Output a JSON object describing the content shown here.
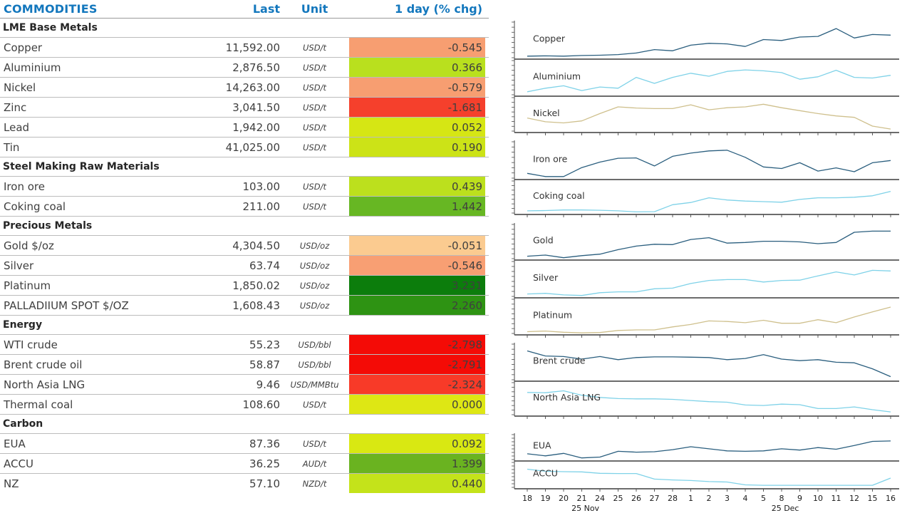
{
  "title": "COMMODITIES",
  "columns": {
    "last": "Last",
    "unit": "Unit",
    "chg": "1 day (% chg)"
  },
  "colors": {
    "header_blue": "#1377bd",
    "table_text": "#3f3f3f",
    "axis": "#4a4a4a",
    "dark_line": "#2a5e7e",
    "light_line": "#7fd2e8",
    "tan_line": "#cfc08d"
  },
  "sections": [
    {
      "name": "LME Base Metals",
      "rows": [
        {
          "label": "Copper",
          "last": "11,592.00",
          "unit": "USD/t",
          "chg": "-0.545",
          "bg": "#f79e71"
        },
        {
          "label": "Aluminium",
          "last": "2,876.50",
          "unit": "USD/t",
          "chg": "0.366",
          "bg": "#b9e01e"
        },
        {
          "label": "Nickel",
          "last": "14,263.00",
          "unit": "USD/t",
          "chg": "-0.579",
          "bg": "#f79e71"
        },
        {
          "label": "Zinc",
          "last": "3,041.50",
          "unit": "USD/t",
          "chg": "-1.681",
          "bg": "#f5402c"
        },
        {
          "label": "Lead",
          "last": "1,942.00",
          "unit": "USD/t",
          "chg": "0.052",
          "bg": "#d6e614"
        },
        {
          "label": "Tin",
          "last": "41,025.00",
          "unit": "USD/t",
          "chg": "0.190",
          "bg": "#cce317"
        }
      ]
    },
    {
      "name": "Steel Making Raw Materials",
      "rows": [
        {
          "label": "Iron ore",
          "last": "103.00",
          "unit": "USD/t",
          "chg": "0.439",
          "bg": "#bce01d"
        },
        {
          "label": "Coking coal",
          "last": "211.00",
          "unit": "USD/t",
          "chg": "1.442",
          "bg": "#67b723"
        }
      ]
    },
    {
      "name": "Precious Metals",
      "rows": [
        {
          "label": "Gold $/oz",
          "last": "4,304.50",
          "unit": "USD/oz",
          "chg": "-0.051",
          "bg": "#fbcb90"
        },
        {
          "label": "Silver",
          "last": "63.74",
          "unit": "USD/oz",
          "chg": "-0.546",
          "bg": "#f89f73"
        },
        {
          "label": "Platinum",
          "last": "1,850.02",
          "unit": "USD/oz",
          "chg": "3.231",
          "bg": "#0c7d0c"
        },
        {
          "label": "PALLADIIUM SPOT $/OZ",
          "last": "1,608.43",
          "unit": "USD/oz",
          "chg": "2.260",
          "bg": "#2e9313"
        }
      ]
    },
    {
      "name": "Energy",
      "rows": [
        {
          "label": "WTI crude",
          "last": "55.23",
          "unit": "USD/bbl",
          "chg": "-2.798",
          "bg": "#f40b06"
        },
        {
          "label": "Brent crude oil",
          "last": "58.87",
          "unit": "USD/bbl",
          "chg": "-2.791",
          "bg": "#f40b06"
        },
        {
          "label": "North Asia LNG",
          "last": "9.46",
          "unit": "USD/MMBtu",
          "chg": "-2.324",
          "bg": "#f83a28"
        },
        {
          "label": "Thermal coal",
          "last": "108.60",
          "unit": "USD/t",
          "chg": "0.000",
          "bg": "#dee714"
        }
      ]
    },
    {
      "name": "Carbon",
      "rows": [
        {
          "label": "EUA",
          "last": "87.36",
          "unit": "USD/t",
          "chg": "0.092",
          "bg": "#d9e812"
        },
        {
          "label": "ACCU",
          "last": "36.25",
          "unit": "AUD/t",
          "chg": "1.399",
          "bg": "#6ab320"
        },
        {
          "label": "NZ",
          "last": "57.10",
          "unit": "NZD/t",
          "chg": "0.440",
          "bg": "#c4e31a"
        }
      ]
    }
  ],
  "chart_data": {
    "type": "line",
    "note": "sparklines, y normalized 0-100 per band (no y tick labels shown)",
    "x_labels": [
      "18",
      "19",
      "20",
      "21",
      "24",
      "25",
      "26",
      "27",
      "28",
      "1",
      "2",
      "3",
      "4",
      "5",
      "8",
      "9",
      "10",
      "11",
      "12",
      "15",
      "16"
    ],
    "month_labels": [
      {
        "text": "25 Nov",
        "index": 3.2
      },
      {
        "text": "25 Dec",
        "index": 14.2
      }
    ],
    "groups": [
      {
        "series": [
          {
            "label": "Copper",
            "palette": "dark_line",
            "values_norm": [
              5,
              6,
              5,
              7,
              8,
              10,
              15,
              26,
              22,
              40,
              46,
              44,
              36,
              58,
              55,
              66,
              68,
              93,
              63,
              74,
              72
            ]
          },
          {
            "label": "Aluminium",
            "palette": "light_line",
            "values_norm": [
              10,
              22,
              30,
              14,
              26,
              22,
              58,
              38,
              58,
              72,
              62,
              78,
              83,
              80,
              74,
              52,
              60,
              82,
              58,
              56,
              65
            ]
          },
          {
            "label": "Nickel",
            "palette": "tan_line",
            "values_norm": [
              45,
              32,
              28,
              35,
              60,
              83,
              79,
              77,
              77,
              90,
              73,
              80,
              83,
              92,
              80,
              70,
              60,
              52,
              47,
              17,
              7
            ]
          }
        ]
      },
      {
        "series": [
          {
            "label": "Iron ore",
            "palette": "dark_line",
            "values_norm": [
              15,
              5,
              5,
              33,
              50,
              62,
              63,
              38,
              68,
              78,
              85,
              87,
              65,
              35,
              30,
              48,
              22,
              32,
              20,
              48,
              55
            ]
          },
          {
            "label": "Coking coal",
            "palette": "light_line",
            "values_norm": [
              8,
              9,
              11,
              11,
              10,
              8,
              4,
              5,
              30,
              38,
              55,
              47,
              43,
              41,
              39,
              49,
              55,
              55,
              57,
              62,
              78
            ]
          }
        ]
      },
      {
        "series": [
          {
            "label": "Gold",
            "palette": "dark_line",
            "values_norm": [
              8,
              12,
              3,
              10,
              15,
              30,
              42,
              48,
              47,
              64,
              70,
              52,
              54,
              58,
              58,
              56,
              50,
              54,
              88,
              92,
              92
            ]
          },
          {
            "label": "Silver",
            "palette": "light_line",
            "values_norm": [
              8,
              10,
              5,
              3,
              12,
              15,
              15,
              25,
              27,
              42,
              52,
              55,
              55,
              47,
              52,
              53,
              67,
              80,
              70,
              85,
              83
            ]
          },
          {
            "label": "Platinum",
            "palette": "tan_line",
            "values_norm": [
              6,
              8,
              4,
              2,
              3,
              10,
              12,
              12,
              22,
              30,
              42,
              40,
              36,
              44,
              34,
              34,
              46,
              36,
              55,
              72,
              88
            ]
          }
        ]
      },
      {
        "series": [
          {
            "label": "Brent crude",
            "palette": "dark_line",
            "values_norm": [
              92,
              76,
              74,
              66,
              74,
              64,
              71,
              73,
              73,
              72,
              71,
              64,
              68,
              80,
              66,
              61,
              64,
              56,
              54,
              35,
              10
            ]
          },
          {
            "label": "North Asia LNG",
            "palette": "light_line",
            "values_norm": [
              80,
              79,
              86,
              70,
              62,
              58,
              57,
              57,
              55,
              51,
              47,
              45,
              35,
              33,
              38,
              36,
              22,
              22,
              28,
              18,
              10
            ]
          }
        ]
      },
      {
        "series": [
          {
            "label": "EUA",
            "palette": "dark_line",
            "values_norm": [
              28,
              18,
              30,
              8,
              12,
              40,
              36,
              38,
              48,
              62,
              52,
              42,
              40,
              42,
              52,
              46,
              58,
              50,
              68,
              88,
              90
            ]
          },
          {
            "label": "ACCU",
            "palette": "light_line",
            "values_norm": [
              88,
              78,
              76,
              75,
              68,
              67,
              67,
              40,
              36,
              33,
              28,
              26,
              12,
              10,
              10,
              10,
              10,
              10,
              10,
              10,
              45
            ]
          }
        ]
      }
    ]
  }
}
